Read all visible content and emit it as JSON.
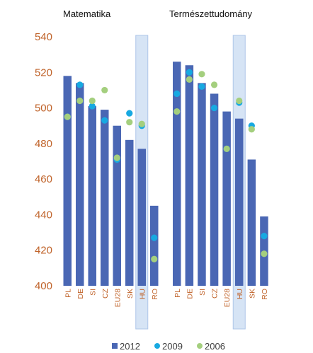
{
  "chart_data": [
    {
      "type": "bar",
      "title": "Matematika",
      "categories": [
        "PL",
        "DE",
        "SI",
        "CZ",
        "EU28",
        "SK",
        "HU",
        "RO"
      ],
      "highlight": "HU",
      "series": [
        {
          "name": "2012",
          "kind": "bar",
          "color": "#4a67b4",
          "values": [
            518,
            514,
            501,
            499,
            490,
            482,
            477,
            445
          ]
        },
        {
          "name": "2009",
          "kind": "marker",
          "color": "#17a9e1",
          "values": [
            495,
            513,
            501,
            493,
            471,
            497,
            490,
            427
          ]
        },
        {
          "name": "2006",
          "kind": "marker",
          "color": "#a4cf7e",
          "values": [
            495,
            504,
            504,
            510,
            472,
            492,
            491,
            415
          ]
        }
      ],
      "ylim": [
        400,
        540
      ],
      "yticks": [
        400,
        420,
        440,
        460,
        480,
        500,
        520,
        540
      ]
    },
    {
      "type": "bar",
      "title": "Természettudomány",
      "categories": [
        "PL",
        "DE",
        "SI",
        "CZ",
        "EU28",
        "HU",
        "SK",
        "RO"
      ],
      "highlight": "HU",
      "series": [
        {
          "name": "2012",
          "kind": "bar",
          "color": "#4a67b4",
          "values": [
            526,
            524,
            514,
            508,
            498,
            494,
            471,
            439
          ]
        },
        {
          "name": "2009",
          "kind": "marker",
          "color": "#17a9e1",
          "values": [
            508,
            520,
            512,
            500,
            477,
            503,
            490,
            428
          ]
        },
        {
          "name": "2006",
          "kind": "marker",
          "color": "#a4cf7e",
          "values": [
            498,
            516,
            519,
            513,
            477,
            504,
            488,
            418
          ]
        }
      ],
      "ylim": [
        400,
        540
      ]
    }
  ],
  "legend": [
    {
      "label": "2012",
      "color": "#4a67b4",
      "shape": "square"
    },
    {
      "label": "2009",
      "color": "#17a9e1",
      "shape": "circle"
    },
    {
      "label": "2006",
      "color": "#a4cf7e",
      "shape": "circle"
    }
  ]
}
